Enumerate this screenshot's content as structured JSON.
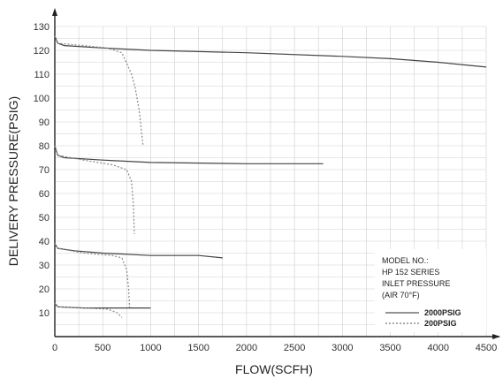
{
  "chart_data": {
    "type": "line",
    "xlabel": "FLOW(SCFH)",
    "ylabel": "DELIVERY PRESSURE(PSIG)",
    "xlim": [
      0,
      4500
    ],
    "ylim": [
      0,
      130
    ],
    "x_ticks": [
      0,
      500,
      1000,
      1500,
      2000,
      2500,
      3000,
      3500,
      4000,
      4500
    ],
    "y_ticks": [
      10,
      20,
      30,
      40,
      50,
      60,
      70,
      80,
      90,
      100,
      110,
      120,
      130
    ],
    "grid": true,
    "legend": {
      "title_lines": [
        "MODEL NO.:",
        "HP 152 SERIES",
        "INLET PRESSURE",
        "(AIR 70°F)"
      ],
      "entries": [
        {
          "label": "2000PSIG",
          "style": "solid"
        },
        {
          "label": "200PSIG",
          "style": "dashed"
        }
      ],
      "position": "bottom-right"
    },
    "series": [
      {
        "style": "solid",
        "points": [
          [
            0,
            126
          ],
          [
            30,
            123
          ],
          [
            100,
            122
          ],
          [
            500,
            121
          ],
          [
            1000,
            120
          ],
          [
            2000,
            119
          ],
          [
            3000,
            117.5
          ],
          [
            3500,
            116.5
          ],
          [
            4000,
            115
          ],
          [
            4500,
            113
          ]
        ]
      },
      {
        "style": "dashed",
        "points": [
          [
            0,
            126
          ],
          [
            30,
            123
          ],
          [
            300,
            122
          ],
          [
            550,
            121
          ],
          [
            700,
            119
          ],
          [
            800,
            110
          ],
          [
            840,
            104
          ],
          [
            880,
            95
          ],
          [
            920,
            80
          ]
        ]
      },
      {
        "style": "solid",
        "points": [
          [
            0,
            80
          ],
          [
            30,
            76
          ],
          [
            100,
            75
          ],
          [
            500,
            74
          ],
          [
            1000,
            73
          ],
          [
            2000,
            72.5
          ],
          [
            2800,
            72.5
          ]
        ]
      },
      {
        "style": "dashed",
        "points": [
          [
            0,
            80
          ],
          [
            30,
            76
          ],
          [
            300,
            74
          ],
          [
            600,
            72
          ],
          [
            750,
            70
          ],
          [
            800,
            65
          ],
          [
            820,
            55
          ],
          [
            830,
            43
          ]
        ]
      },
      {
        "style": "solid",
        "points": [
          [
            0,
            39
          ],
          [
            30,
            37
          ],
          [
            200,
            36
          ],
          [
            500,
            35
          ],
          [
            1000,
            34
          ],
          [
            1500,
            34
          ],
          [
            1750,
            33
          ]
        ]
      },
      {
        "style": "dashed",
        "points": [
          [
            0,
            39
          ],
          [
            30,
            37
          ],
          [
            300,
            35
          ],
          [
            600,
            34
          ],
          [
            700,
            33
          ],
          [
            750,
            28
          ],
          [
            770,
            20
          ],
          [
            780,
            12
          ]
        ]
      },
      {
        "style": "solid",
        "points": [
          [
            0,
            14
          ],
          [
            30,
            12.5
          ],
          [
            300,
            12
          ],
          [
            700,
            12
          ],
          [
            1000,
            12
          ]
        ]
      },
      {
        "style": "dashed",
        "points": [
          [
            0,
            14
          ],
          [
            30,
            12.5
          ],
          [
            300,
            12
          ],
          [
            550,
            11.5
          ],
          [
            650,
            10
          ],
          [
            700,
            8
          ]
        ]
      }
    ]
  }
}
